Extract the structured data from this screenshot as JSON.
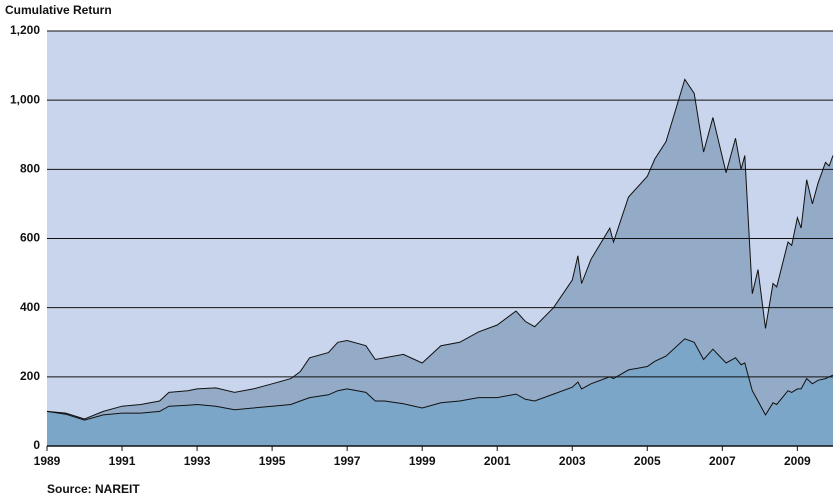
{
  "chart_data": {
    "type": "area",
    "title": "Cumulative Return",
    "source": "Source: NAREIT",
    "x": [
      1989,
      1989.5,
      1990,
      1990.5,
      1991,
      1991.5,
      1992,
      1992.25,
      1992.75,
      1993,
      1993.5,
      1994,
      1994.5,
      1995,
      1995.5,
      1995.75,
      1996,
      1996.5,
      1996.75,
      1997,
      1997.5,
      1997.75,
      1998,
      1998.5,
      1999,
      1999.5,
      2000,
      2000.5,
      2001,
      2001.5,
      2001.75,
      2002,
      2002.5,
      2003,
      2003.15,
      2003.25,
      2003.5,
      2004,
      2004.1,
      2004.5,
      2005,
      2005.2,
      2005.5,
      2006,
      2006.25,
      2006.5,
      2006.75,
      2007.1,
      2007.35,
      2007.5,
      2007.6,
      2007.8,
      2007.95,
      2008.15,
      2008.35,
      2008.45,
      2008.75,
      2008.85,
      2009,
      2009.1,
      2009.25,
      2009.4,
      2009.55,
      2009.75,
      2009.85,
      2009.95
    ],
    "series": [
      {
        "color": "#94abc7",
        "values": [
          100,
          95,
          78,
          100,
          115,
          120,
          130,
          155,
          160,
          165,
          168,
          155,
          165,
          180,
          195,
          215,
          255,
          270,
          300,
          305,
          290,
          250,
          255,
          265,
          240,
          290,
          300,
          330,
          350,
          390,
          360,
          345,
          400,
          480,
          550,
          470,
          540,
          630,
          590,
          720,
          780,
          830,
          880,
          1060,
          1020,
          850,
          950,
          790,
          890,
          800,
          840,
          440,
          510,
          340,
          470,
          460,
          590,
          580,
          660,
          630,
          770,
          700,
          760,
          820,
          810,
          840
        ]
      },
      {
        "color": "#7ba6c8",
        "values": [
          100,
          92,
          75,
          90,
          95,
          95,
          100,
          115,
          118,
          120,
          115,
          105,
          110,
          115,
          120,
          130,
          140,
          148,
          160,
          165,
          155,
          130,
          130,
          122,
          110,
          125,
          130,
          140,
          140,
          150,
          135,
          130,
          150,
          170,
          185,
          165,
          180,
          200,
          195,
          220,
          230,
          245,
          260,
          310,
          300,
          250,
          280,
          240,
          255,
          235,
          240,
          160,
          130,
          90,
          125,
          120,
          160,
          155,
          165,
          165,
          195,
          180,
          190,
          195,
          200,
          205
        ]
      }
    ],
    "xlim": [
      1989,
      2009.95
    ],
    "xticks": [
      1989,
      1991,
      1993,
      1995,
      1997,
      1999,
      2001,
      2003,
      2005,
      2007,
      2009
    ],
    "ylim": [
      0,
      1200
    ],
    "yticks": [
      0,
      200,
      400,
      600,
      800,
      {
        "value": 1000,
        "label": "1,000"
      },
      {
        "value": 1200,
        "label": "1,200"
      }
    ],
    "grid": true,
    "plot_background": "#c8d5ec"
  }
}
